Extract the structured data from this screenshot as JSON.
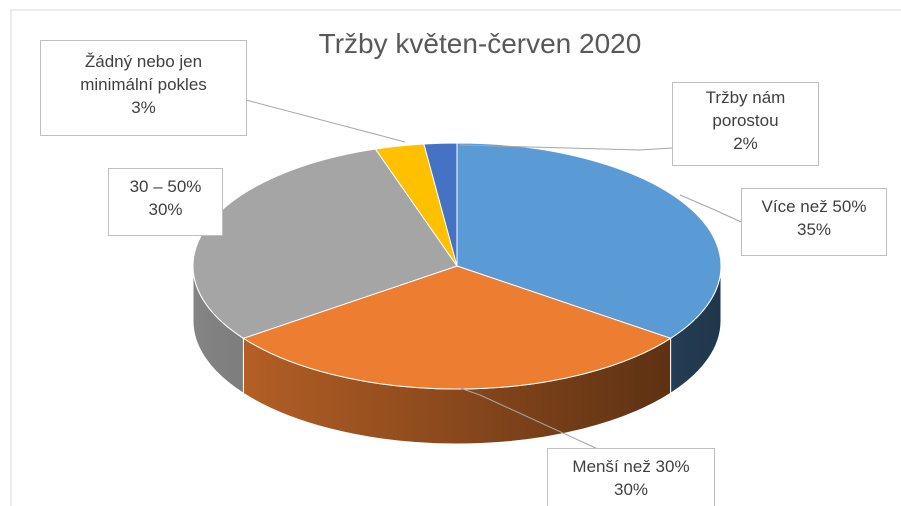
{
  "chart_data": {
    "type": "pie3d",
    "title": "Tržby květen-červen 2020",
    "categories": [
      "Více než 50%",
      "Menší než 30%",
      "30 – 50%",
      "Žádný nebo jen minimální pokles",
      "Tržby nám porostou"
    ],
    "values": [
      35,
      30,
      30,
      3,
      2
    ],
    "value_labels": [
      "35%",
      "30%",
      "30%",
      "3%",
      "2%"
    ],
    "colors": [
      "#5b9bd5",
      "#ed7d31",
      "#a5a5a5",
      "#ffc000",
      "#4472c4"
    ]
  }
}
